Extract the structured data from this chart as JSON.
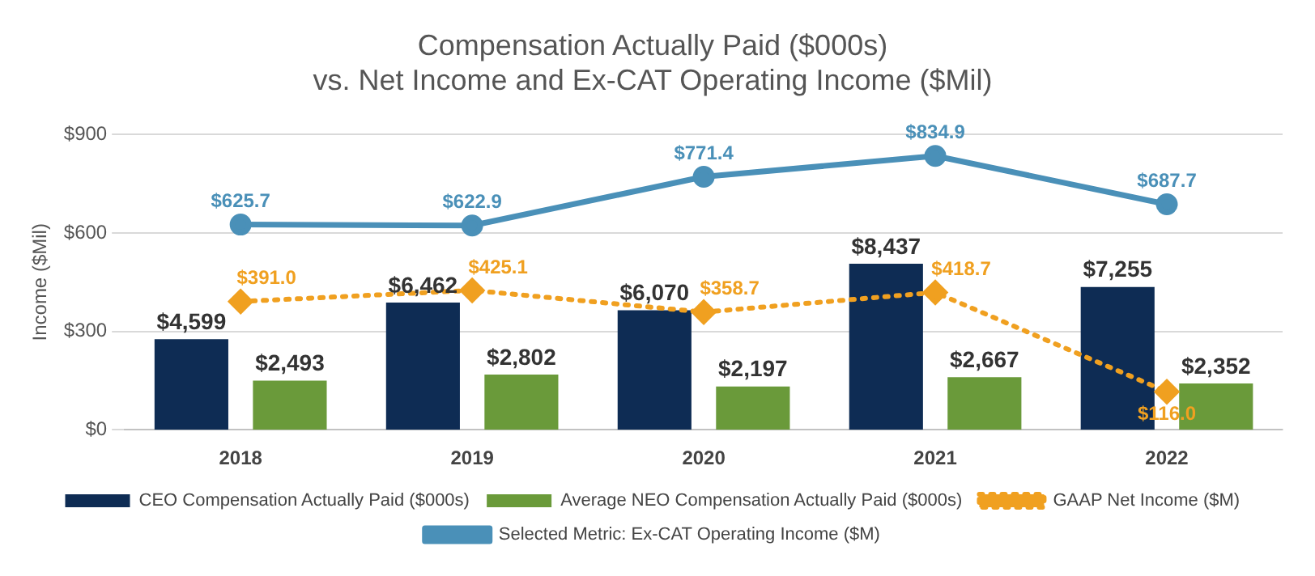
{
  "chart_data": {
    "type": "bar",
    "title": [
      "Compensation Actually Paid ($000s)",
      "vs. Net Income and Ex-CAT Operating Income ($Mil)"
    ],
    "ylabel": "Income ($Mil)",
    "categories": [
      "2018",
      "2019",
      "2020",
      "2021",
      "2022"
    ],
    "series": [
      {
        "name": "CEO Compensation Actually Paid ($000s)",
        "axis": "y2",
        "color": "#0e2c54",
        "values": [
          4599,
          6462,
          6070,
          8437,
          7255
        ],
        "value_labels": [
          "$4,599",
          "$6,462",
          "$6,070",
          "$8,437",
          "$7,255"
        ]
      },
      {
        "name": "Average NEO Compensation Actually Paid ($000s)",
        "axis": "y2",
        "color": "#6a9a3a",
        "values": [
          2493,
          2802,
          2197,
          2667,
          2352
        ],
        "value_labels": [
          "$2,493",
          "$2,802",
          "$2,197",
          "$2,667",
          "$2,352"
        ]
      },
      {
        "name": "GAAP Net Income ($M)",
        "type": "line",
        "color": "#f0a020",
        "marker": "diamond",
        "line_style": "dotted",
        "values": [
          391.0,
          425.1,
          358.7,
          418.7,
          116.0
        ],
        "value_labels": [
          "$391.0",
          "$425.1",
          "$358.7",
          "$418.7",
          "$116.0"
        ]
      },
      {
        "name": "Selected Metric: Ex-CAT Operating Income ($M)",
        "type": "line",
        "color": "#4a90b8",
        "marker": "circle",
        "line_style": "solid",
        "values": [
          625.7,
          622.9,
          771.4,
          834.9,
          687.7
        ],
        "value_labels": [
          "$625.7",
          "$622.9",
          "$771.4",
          "$834.9",
          "$687.7"
        ]
      }
    ],
    "ylim": [
      0,
      900
    ],
    "yticks": [
      {
        "value": 0,
        "label": "$0"
      },
      {
        "value": 300,
        "label": "$300"
      },
      {
        "value": 600,
        "label": "$600"
      },
      {
        "value": 900,
        "label": "$900"
      }
    ],
    "y2lim": [
      0,
      15000
    ],
    "grid": "y",
    "legend": "bottom"
  }
}
